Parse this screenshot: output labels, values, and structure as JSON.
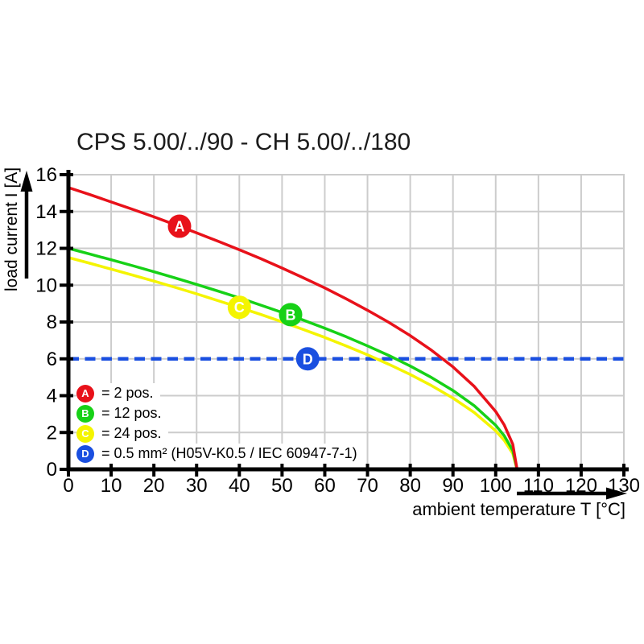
{
  "chart_data": {
    "type": "line",
    "title": "CPS 5.00/../90 - CH 5.00/../180",
    "xlabel": "ambient temperature T [°C]",
    "ylabel": "load current I [A]",
    "xlim": [
      0,
      130
    ],
    "ylim": [
      0,
      16
    ],
    "xticks": [
      0,
      10,
      20,
      30,
      40,
      50,
      60,
      70,
      80,
      90,
      100,
      110,
      120,
      130
    ],
    "yticks": [
      0,
      2,
      4,
      6,
      8,
      10,
      12,
      14,
      16
    ],
    "grid": true,
    "legend_position": "inside bottom-left",
    "series": [
      {
        "id": "A",
        "legend_label": "= 2 pos.",
        "color": "#e8111a",
        "line_style": "solid",
        "x": [
          0,
          5,
          10,
          15,
          20,
          25,
          30,
          35,
          40,
          45,
          50,
          55,
          60,
          65,
          70,
          75,
          80,
          85,
          90,
          95,
          100,
          102,
          104,
          105
        ],
        "y": [
          15.3,
          14.92,
          14.52,
          14.12,
          13.71,
          13.28,
          12.84,
          12.39,
          11.92,
          11.44,
          10.93,
          10.4,
          9.85,
          9.26,
          8.64,
          7.98,
          7.26,
          6.46,
          5.56,
          4.5,
          3.14,
          2.41,
          1.36,
          0
        ],
        "marker": {
          "letter": "A",
          "x": 26,
          "y": 13.2
        }
      },
      {
        "id": "B",
        "legend_label": "= 12 pos.",
        "color": "#17d117",
        "line_style": "solid",
        "x": [
          0,
          5,
          10,
          15,
          20,
          25,
          30,
          35,
          40,
          45,
          50,
          55,
          60,
          65,
          70,
          75,
          80,
          85,
          90,
          95,
          100,
          102,
          104,
          105
        ],
        "y": [
          12,
          11.69,
          11.38,
          11.06,
          10.73,
          10.39,
          10.04,
          9.68,
          9.31,
          8.92,
          8.52,
          8.1,
          7.66,
          7.2,
          6.7,
          6.18,
          5.61,
          4.98,
          4.28,
          3.45,
          2.39,
          1.82,
          1.02,
          0
        ],
        "marker": {
          "letter": "B",
          "x": 52,
          "y": 8.4
        }
      },
      {
        "id": "C",
        "legend_label": "= 24 pos.",
        "color": "#f4f400",
        "line_style": "solid",
        "x": [
          0,
          5,
          10,
          15,
          20,
          25,
          30,
          35,
          40,
          45,
          50,
          55,
          60,
          65,
          70,
          75,
          80,
          85,
          90,
          95,
          100,
          102,
          104,
          105
        ],
        "y": [
          11.5,
          11.19,
          10.87,
          10.55,
          10.22,
          9.88,
          9.53,
          9.16,
          8.79,
          8.41,
          8.01,
          7.59,
          7.16,
          6.7,
          6.22,
          5.7,
          5.15,
          4.54,
          3.87,
          3.08,
          2.09,
          1.57,
          0.85,
          0
        ],
        "marker": {
          "letter": "C",
          "x": 40,
          "y": 8.8
        }
      },
      {
        "id": "D",
        "legend_label": "= 0.5 mm² (H05V-K0.5 / IEC 60947-7-1)",
        "color": "#1a4fe0",
        "line_style": "dashed",
        "x": [
          0,
          130
        ],
        "y": [
          6,
          6
        ],
        "marker": {
          "letter": "D",
          "x": 56,
          "y": 6
        }
      }
    ],
    "marker_text_color": "#ffffff"
  },
  "colors": {
    "grid": "#cccccc",
    "axis": "#000000",
    "text": "#000000"
  }
}
